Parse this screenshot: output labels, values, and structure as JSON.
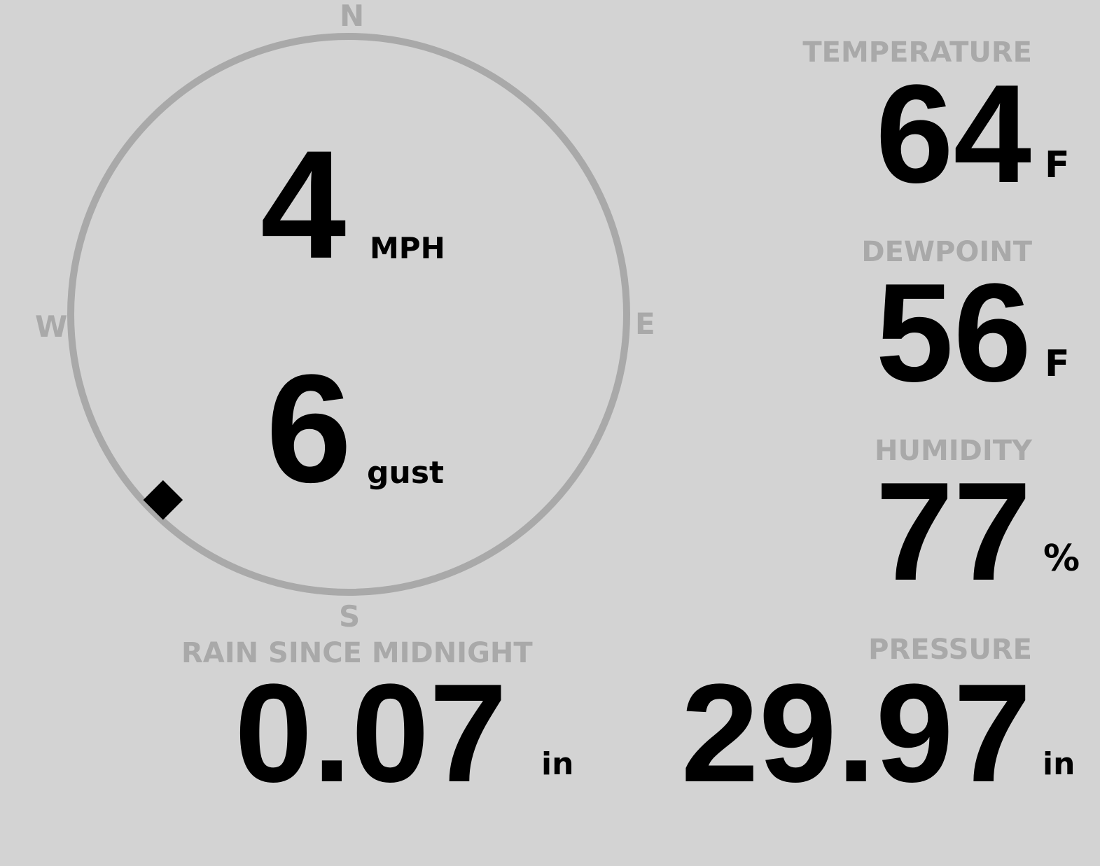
{
  "colors": {
    "background": "#d3d3d3",
    "label": "#a9a9a9",
    "value": "#000000",
    "ring": "#a9a9a9"
  },
  "wind": {
    "compass": {
      "north": "N",
      "east": "E",
      "south": "S",
      "west": "W"
    },
    "speed": "4",
    "speed_unit": "MPH",
    "gust": "6",
    "gust_label": "gust",
    "direction_deg": 225,
    "direction_marker_icon": "diamond-icon"
  },
  "temperature": {
    "label": "TEMPERATURE",
    "value": "64",
    "unit": "F"
  },
  "dewpoint": {
    "label": "DEWPOINT",
    "value": "56",
    "unit": "F"
  },
  "humidity": {
    "label": "HUMIDITY",
    "value": "77",
    "unit": "%"
  },
  "rain": {
    "label": "RAIN SINCE MIDNIGHT",
    "value": "0.07",
    "unit": "in"
  },
  "pressure": {
    "label": "PRESSURE",
    "value": "29.97",
    "unit": "in"
  }
}
